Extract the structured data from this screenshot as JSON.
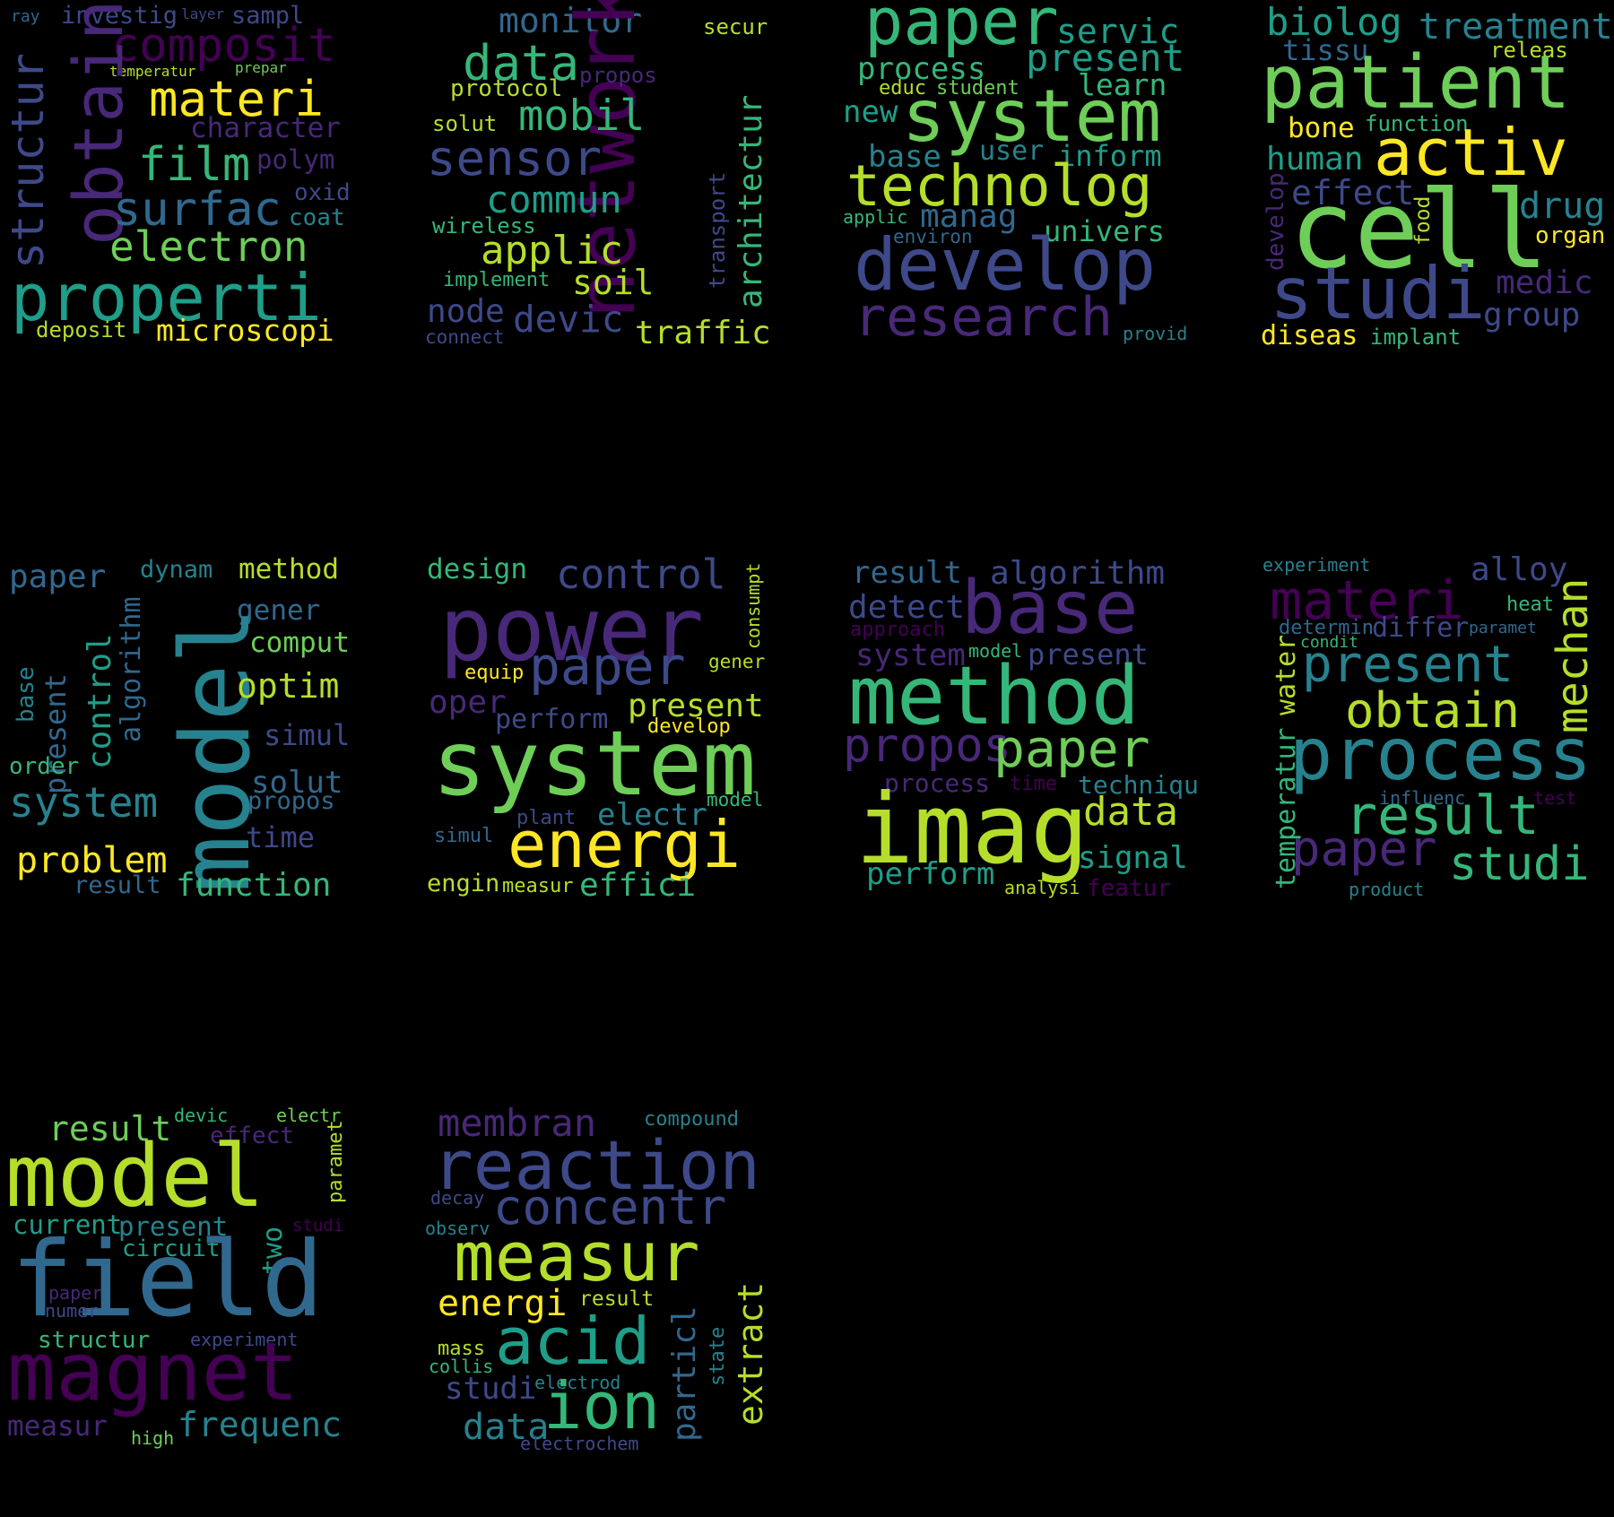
{
  "palette": {
    "dark_purple": "#440154",
    "purple": "#482878",
    "indigo": "#3e4989",
    "blue": "#31688e",
    "teal": "#26828e",
    "green_teal": "#1f9e89",
    "green": "#35b779",
    "light_green": "#6ece58",
    "yellow_green": "#b5de2b",
    "yellow": "#fde725"
  },
  "clouds": [
    {
      "words": [
        "ray",
        "investig",
        "layer",
        "sampl",
        "composit",
        "temperatur",
        "prepar",
        "materi",
        "structur",
        "obtain",
        "character",
        "film",
        "polym",
        "oxid",
        "surfac",
        "coat",
        "electron",
        "properti",
        "deposit",
        "microscopi"
      ]
    },
    {
      "words": [
        "monitor",
        "secur",
        "data",
        "network",
        "protocol",
        "propos",
        "solut",
        "mobil",
        "sensor",
        "architectur",
        "commun",
        "transport",
        "wireless",
        "applic",
        "implement",
        "soil",
        "node",
        "devic",
        "connect",
        "traffic"
      ]
    },
    {
      "words": [
        "paper",
        "servic",
        "present",
        "process",
        "learn",
        "educ",
        "student",
        "new",
        "system",
        "base",
        "user",
        "inform",
        "technolog",
        "applic",
        "manag",
        "environ",
        "univers",
        "develop",
        "research",
        "provid"
      ]
    },
    {
      "words": [
        "biolog",
        "treatment",
        "tissu",
        "releas",
        "patient",
        "bone",
        "function",
        "activ",
        "human",
        "develop",
        "effect",
        "food",
        "drug",
        "cell",
        "organ",
        "medic",
        "studi",
        "group",
        "diseas",
        "implant"
      ]
    },
    {
      "words": [
        "paper",
        "dynam",
        "method",
        "gener",
        "model",
        "comput",
        "base",
        "present",
        "control",
        "algorithm",
        "optim",
        "simul",
        "order",
        "system",
        "solut",
        "propos",
        "time",
        "problem",
        "result",
        "function"
      ]
    },
    {
      "words": [
        "design",
        "control",
        "consumpt",
        "power",
        "paper",
        "gener",
        "equip",
        "oper",
        "present",
        "perform",
        "develop",
        "system",
        "model",
        "plant",
        "electr",
        "simul",
        "energi",
        "engin",
        "measur",
        "effici"
      ]
    },
    {
      "words": [
        "result",
        "algorithm",
        "detect",
        "base",
        "approach",
        "system",
        "model",
        "present",
        "method",
        "propos",
        "paper",
        "process",
        "time",
        "techniqu",
        "data",
        "imag",
        "signal",
        "perform",
        "analysi",
        "featur"
      ]
    },
    {
      "words": [
        "experiment",
        "alloy",
        "materi",
        "heat",
        "determin",
        "differ",
        "paramet",
        "condit",
        "mechan",
        "present",
        "water",
        "obtain",
        "process",
        "temperatur",
        "influenc",
        "test",
        "result",
        "paper",
        "studi",
        "product"
      ]
    },
    {
      "words": [
        "result",
        "devic",
        "electr",
        "effect",
        "model",
        "paramet",
        "current",
        "present",
        "studi",
        "circuit",
        "two",
        "field",
        "paper",
        "numer",
        "structur",
        "experiment",
        "magnet",
        "measur",
        "frequenc",
        "high"
      ]
    },
    {
      "words": [
        "membran",
        "compound",
        "reaction",
        "decay",
        "concentr",
        "observ",
        "measur",
        "energi",
        "result",
        "mass",
        "acid",
        "collis",
        "state",
        "extract",
        "particl",
        "studi",
        "electrod",
        "ion",
        "data",
        "electrochem"
      ]
    }
  ]
}
